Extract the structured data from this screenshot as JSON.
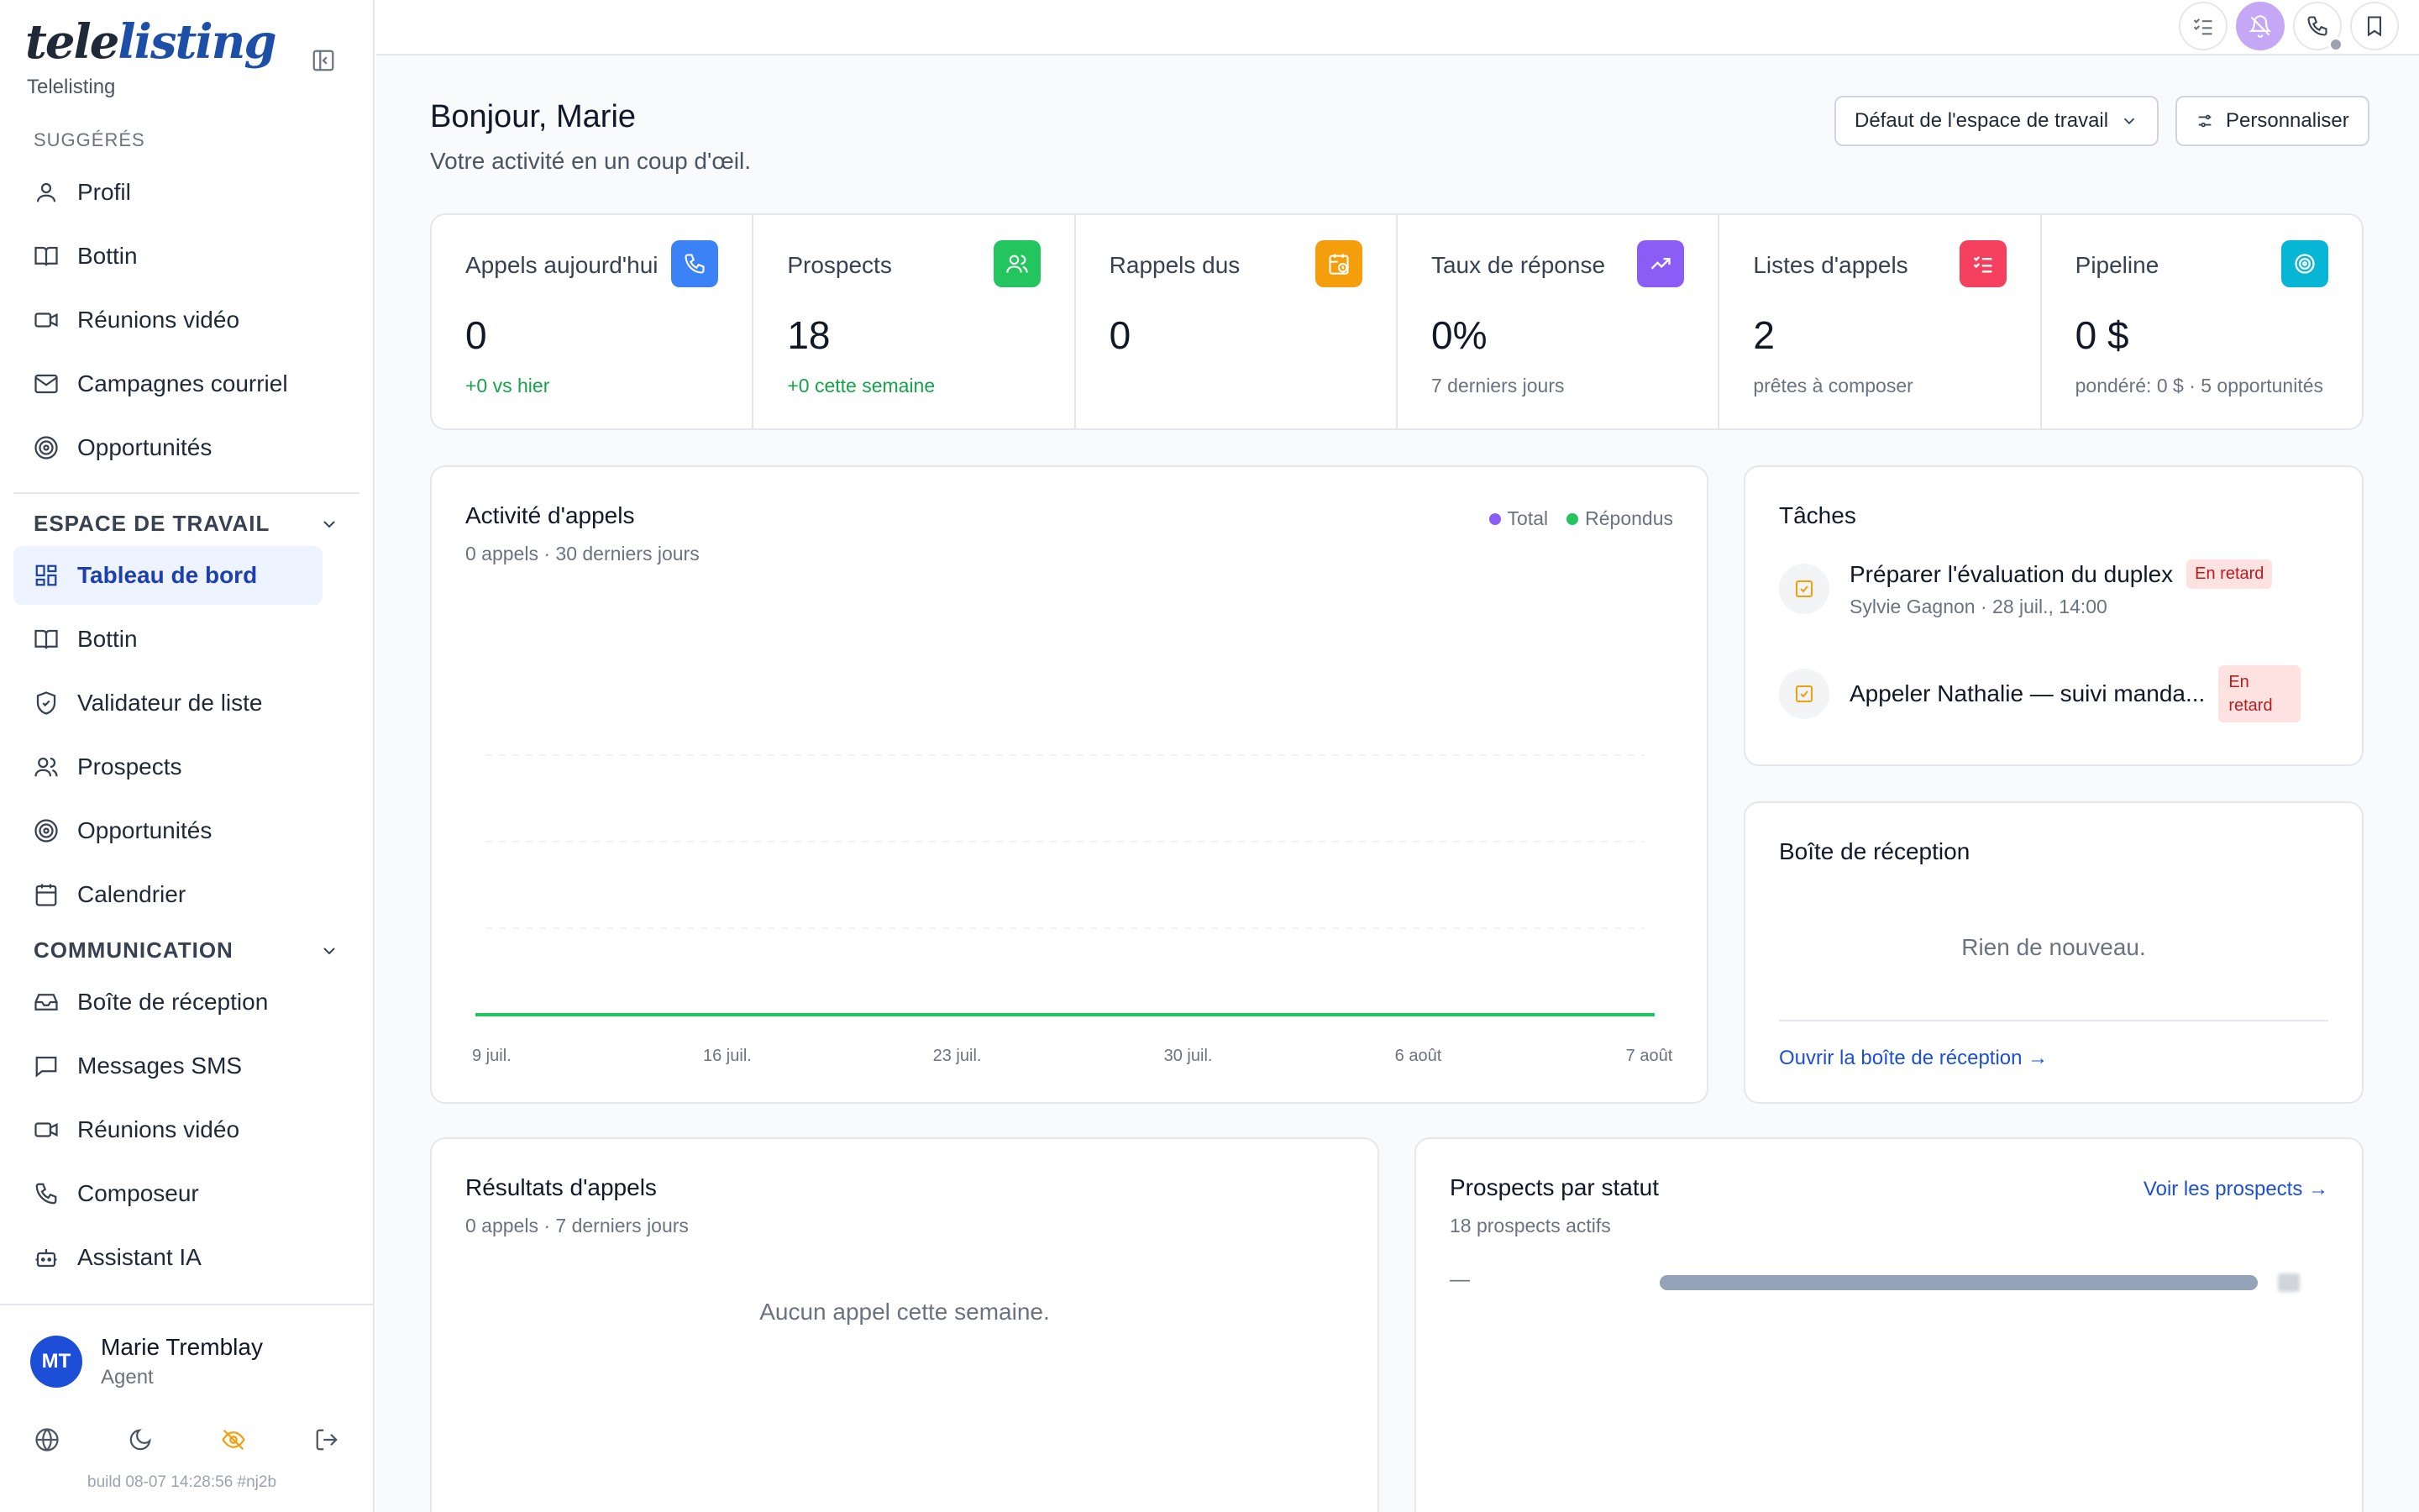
{
  "app": {
    "logo_a": "tele",
    "logo_b": "listing",
    "name": "Telelisting"
  },
  "sidebar": {
    "suggested_label": "SUGGÉRÉS",
    "suggested": [
      {
        "label": "Profil",
        "icon": "user-icon"
      },
      {
        "label": "Bottin",
        "icon": "book-icon"
      },
      {
        "label": "Réunions vidéo",
        "icon": "video-icon"
      },
      {
        "label": "Campagnes courriel",
        "icon": "mail-icon"
      },
      {
        "label": "Opportunités",
        "icon": "target-icon"
      }
    ],
    "workspace_label": "ESPACE DE TRAVAIL",
    "workspace": [
      {
        "label": "Tableau de bord",
        "icon": "dashboard-icon",
        "active": true
      },
      {
        "label": "Bottin",
        "icon": "book-icon"
      },
      {
        "label": "Validateur de liste",
        "icon": "shield-check-icon"
      },
      {
        "label": "Prospects",
        "icon": "users-icon"
      },
      {
        "label": "Opportunités",
        "icon": "target-icon"
      },
      {
        "label": "Calendrier",
        "icon": "calendar-icon"
      }
    ],
    "communication_label": "COMMUNICATION",
    "communication": [
      {
        "label": "Boîte de réception",
        "icon": "inbox-icon"
      },
      {
        "label": "Messages SMS",
        "icon": "message-icon"
      },
      {
        "label": "Réunions vidéo",
        "icon": "video-icon"
      },
      {
        "label": "Composeur",
        "icon": "phone-icon"
      },
      {
        "label": "Assistant IA",
        "icon": "bot-icon"
      }
    ],
    "user": {
      "initials": "MT",
      "name": "Marie Tremblay",
      "role": "Agent"
    },
    "build": "build 08-07 14:28:56 #nj2b"
  },
  "header": {
    "greeting": "Bonjour, Marie",
    "subtitle": "Votre activité en un coup d'œil.",
    "workspace_select": "Défaut de l'espace de travail",
    "customize": "Personnaliser"
  },
  "stats": [
    {
      "label": "Appels aujourd'hui",
      "value": "0",
      "note": "+0 vs hier",
      "note_green": true,
      "color": "#3b82f6",
      "icon": "phone-icon"
    },
    {
      "label": "Prospects",
      "value": "18",
      "note": "+0 cette semaine",
      "note_green": true,
      "color": "#22c55e",
      "icon": "users-icon"
    },
    {
      "label": "Rappels dus",
      "value": "0",
      "note": "",
      "note_green": false,
      "color": "#f59e0b",
      "icon": "calendar-clock-icon"
    },
    {
      "label": "Taux de réponse",
      "value": "0%",
      "note": "7 derniers jours",
      "note_green": false,
      "color": "#8b5cf6",
      "icon": "trending-up-icon"
    },
    {
      "label": "Listes d'appels",
      "value": "2",
      "note": "prêtes à composer",
      "note_green": false,
      "color": "#f43f5e",
      "icon": "list-checks-icon"
    },
    {
      "label": "Pipeline",
      "value": "0 $",
      "note": "pondéré: 0 $ · 5 opportunités",
      "note_green": false,
      "color": "#06b6d4",
      "icon": "target-icon"
    }
  ],
  "activity": {
    "title": "Activité d'appels",
    "subtitle": "0 appels · 30 derniers jours",
    "legend_total": "Total",
    "legend_answered": "Répondus",
    "colors": {
      "total": "#8b5cf6",
      "answered": "#22c55e"
    }
  },
  "chart_data": {
    "type": "line",
    "title": "Activité d'appels",
    "x_tick_labels": [
      "9 juil.",
      "16 juil.",
      "23 juil.",
      "30 juil.",
      "6 août",
      "7 août"
    ],
    "series": [
      {
        "name": "Total",
        "values": [
          0,
          0,
          0,
          0,
          0,
          0
        ]
      },
      {
        "name": "Répondus",
        "values": [
          0,
          0,
          0,
          0,
          0,
          0
        ]
      }
    ],
    "grid": true,
    "legend": "top-right"
  },
  "tasks": {
    "title": "Tâches",
    "items": [
      {
        "title": "Préparer l'évaluation du duplex",
        "meta": "Sylvie Gagnon · 28 juil., 14:00",
        "badge": "En retard"
      },
      {
        "title": "Appeler Nathalie — suivi manda...",
        "meta": "",
        "badge": "En retard"
      }
    ]
  },
  "inbox": {
    "title": "Boîte de réception",
    "empty": "Rien de nouveau.",
    "link": "Ouvrir la boîte de réception →"
  },
  "results": {
    "title": "Résultats d'appels",
    "subtitle": "0 appels · 7 derniers jours",
    "empty": "Aucun appel cette semaine."
  },
  "prospects_status": {
    "title": "Prospects par statut",
    "subtitle": "18 prospects actifs",
    "link": "Voir les prospects →",
    "row_label": "—",
    "row_fraction": 1.0
  }
}
